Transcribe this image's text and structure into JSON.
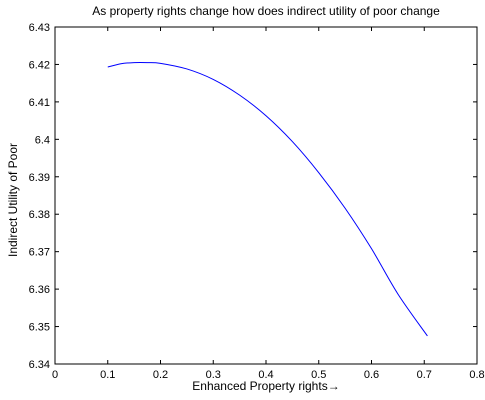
{
  "chart_data": {
    "type": "line",
    "title": "As property rights change how does indirect utility of poor change",
    "xlabel": "Enhanced Property rights→",
    "ylabel": "Indirect Utility of Poor",
    "xlim": [
      0,
      0.8
    ],
    "ylim": [
      6.34,
      6.43
    ],
    "x_ticks": [
      0,
      0.1,
      0.2,
      0.3,
      0.4,
      0.5,
      0.6,
      0.7,
      0.8
    ],
    "x_tick_labels": [
      "0",
      "0.1",
      "0.2",
      "0.3",
      "0.4",
      "0.5",
      "0.6",
      "0.7",
      "0.8"
    ],
    "y_ticks": [
      6.34,
      6.35,
      6.36,
      6.37,
      6.38,
      6.39,
      6.4,
      6.41,
      6.42,
      6.43
    ],
    "y_tick_labels": [
      "6.34",
      "6.35",
      "6.36",
      "6.37",
      "6.38",
      "6.39",
      "6.4",
      "6.41",
      "6.42",
      "6.43"
    ],
    "grid": false,
    "legend": "none",
    "series": [
      {
        "color": "#0000ff",
        "x": [
          0.1,
          0.125,
          0.15,
          0.175,
          0.2,
          0.25,
          0.3,
          0.35,
          0.4,
          0.45,
          0.5,
          0.55,
          0.6,
          0.65,
          0.706
        ],
        "y": [
          6.4193,
          6.4202,
          6.4205,
          6.4205,
          6.4203,
          6.4188,
          6.416,
          6.4118,
          6.4063,
          6.3994,
          6.3911,
          6.3816,
          6.3708,
          6.3587,
          6.3475
        ]
      }
    ]
  }
}
